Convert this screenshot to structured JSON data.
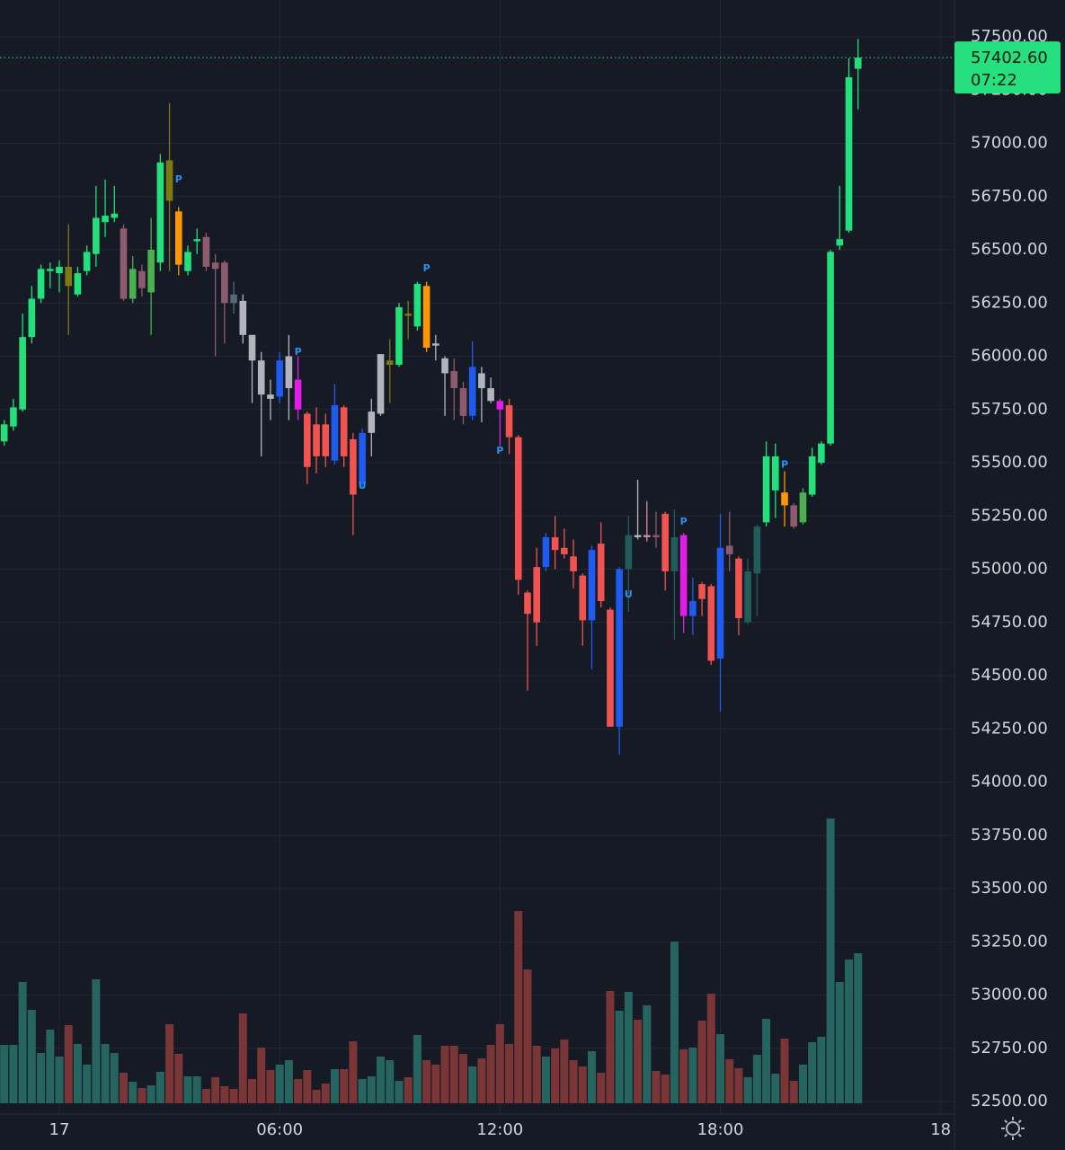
{
  "chart_data": {
    "type": "candlestick",
    "open": [
      55600,
      55670,
      55750,
      56090,
      56270,
      56400,
      56390,
      56420,
      56290,
      56400,
      56480,
      56630,
      56650,
      56600,
      56270,
      56400,
      56300,
      56440,
      56920,
      56680,
      56400,
      56540,
      56560,
      56440,
      56440,
      56290,
      56260,
      56100,
      55980,
      55820,
      55810,
      55850,
      55890,
      55730,
      55680,
      55680,
      55510,
      55760,
      55610,
      55400,
      55640,
      55730,
      55960,
      55960,
      56200,
      56140,
      56330,
      56060,
      55990,
      55930,
      55850,
      55720,
      55920,
      55850,
      55790,
      55770,
      55620,
      54890,
      55010,
      55010,
      55150,
      55100,
      55060,
      54970,
      54760,
      55120,
      54810,
      54260,
      55000,
      55160,
      55150,
      55160,
      55260,
      54990,
      55160,
      54780,
      54930,
      54920,
      54580,
      55110,
      55050,
      54750,
      54980,
      55220,
      55370,
      55360,
      55300,
      55220,
      55350,
      55500,
      55590,
      56520,
      56590,
      57350
    ],
    "high": [
      55700,
      55800,
      56200,
      56330,
      56430,
      56440,
      56450,
      56620,
      56420,
      56520,
      56800,
      56830,
      56800,
      56620,
      56470,
      56430,
      56650,
      56950,
      57190,
      56700,
      56520,
      56600,
      56580,
      56480,
      56450,
      56350,
      56290,
      56100,
      56020,
      55890,
      56020,
      56100,
      56000,
      55740,
      55760,
      55730,
      55870,
      55770,
      55640,
      55660,
      55800,
      56010,
      56080,
      56250,
      56260,
      56350,
      56350,
      56100,
      56000,
      55990,
      55880,
      56070,
      55950,
      55900,
      55800,
      55800,
      55630,
      54900,
      55100,
      55170,
      55250,
      55190,
      55140,
      54980,
      55110,
      55220,
      54820,
      55010,
      55250,
      55420,
      55320,
      55270,
      55270,
      55280,
      55170,
      54960,
      54940,
      54930,
      55260,
      55270,
      55060,
      55050,
      55210,
      55600,
      55590,
      55460,
      55310,
      55380,
      55570,
      55600,
      56500,
      56800,
      57400,
      57490
    ],
    "low": [
      55580,
      55650,
      55740,
      56060,
      56250,
      56320,
      56300,
      56100,
      56280,
      56380,
      56420,
      56560,
      56630,
      56260,
      56250,
      56280,
      56100,
      56400,
      56400,
      56380,
      56380,
      56480,
      56400,
      56000,
      56060,
      56200,
      56060,
      55780,
      55530,
      55700,
      55780,
      55700,
      55700,
      55400,
      55450,
      55480,
      55490,
      55480,
      55160,
      55380,
      55530,
      55720,
      55780,
      55950,
      56080,
      56120,
      56020,
      55980,
      55720,
      55700,
      55680,
      55700,
      55690,
      55780,
      55580,
      55540,
      54880,
      54430,
      54640,
      54990,
      55000,
      55050,
      54910,
      54640,
      54530,
      54820,
      54260,
      54130,
      54800,
      55140,
      55130,
      55100,
      54900,
      54670,
      54700,
      54690,
      54780,
      54550,
      54330,
      54990,
      54690,
      54740,
      54780,
      55200,
      55240,
      55200,
      55190,
      55210,
      55340,
      55490,
      55580,
      56500,
      56580,
      57160
    ],
    "close": [
      55680,
      55760,
      56090,
      56270,
      56410,
      56410,
      56420,
      56330,
      56390,
      56490,
      56650,
      56660,
      56670,
      56270,
      56410,
      56320,
      56500,
      56910,
      56730,
      56430,
      56490,
      56550,
      56420,
      56410,
      56250,
      56250,
      56100,
      55980,
      55820,
      55800,
      55980,
      56000,
      55750,
      55480,
      55530,
      55530,
      55770,
      55530,
      55350,
      55640,
      55740,
      56010,
      55980,
      56230,
      56190,
      56340,
      56040,
      56050,
      55920,
      55850,
      55720,
      55950,
      55850,
      55790,
      55750,
      55620,
      54950,
      54790,
      54750,
      55150,
      55090,
      55070,
      54990,
      54760,
      55090,
      54850,
      54260,
      55000,
      55160,
      55150,
      55160,
      55150,
      54990,
      55150,
      54780,
      54850,
      54860,
      54570,
      55100,
      55070,
      54770,
      54990,
      55200,
      55530,
      55530,
      55300,
      55200,
      55360,
      55530,
      55590,
      56490,
      56550,
      57310,
      57402.6
    ],
    "volume": [
      65,
      65,
      135,
      104,
      56,
      82,
      52,
      87,
      66,
      43,
      138,
      66,
      56,
      34,
      24,
      17,
      20,
      35,
      88,
      55,
      30,
      30,
      16,
      29,
      19,
      16,
      100,
      27,
      62,
      37,
      43,
      48,
      27,
      37,
      15,
      22,
      38,
      38,
      69,
      27,
      30,
      52,
      48,
      25,
      29,
      76,
      48,
      43,
      64,
      64,
      55,
      41,
      50,
      65,
      88,
      66,
      214,
      149,
      64,
      52,
      61,
      71,
      48,
      41,
      58,
      34,
      125,
      103,
      124,
      93,
      109,
      36,
      32,
      180,
      60,
      62,
      92,
      122,
      77,
      49,
      39,
      29,
      54,
      94,
      33,
      72,
      25,
      43,
      68,
      74,
      317,
      135,
      160,
      167
    ],
    "colors": [
      "#22e07a",
      "#22e07a",
      "#22e07a",
      "#22e07a",
      "#22e07a",
      "#22e07a",
      "#22e07a",
      "#7d7a12",
      "#22e07a",
      "#22e07a",
      "#22e07a",
      "#22e07a",
      "#22e07a",
      "#8e5a6e",
      "#4caf50",
      "#8e5a6e",
      "#4caf50",
      "#22e07a",
      "#7d7a12",
      "#ff9800",
      "#22e07a",
      "#22e07a",
      "#8e5a6e",
      "#8e5a6e",
      "#8e5a6e",
      "#4f6b78",
      "#b2b5be",
      "#b2b5be",
      "#b2b5be",
      "#b2b5be",
      "#1e5bf0",
      "#b2b5be",
      "#e11ee6",
      "#f05350",
      "#f05350",
      "#f05350",
      "#1e5bf0",
      "#f05350",
      "#f05350",
      "#1e5bf0",
      "#b2b5be",
      "#b2b5be",
      "#7d7a12",
      "#22e07a",
      "#7d7a12",
      "#22e07a",
      "#ff9800",
      "#b2b5be",
      "#b2b5be",
      "#8e5a6e",
      "#8e5a6e",
      "#1e5bf0",
      "#b2b5be",
      "#b2b5be",
      "#e11ee6",
      "#f05350",
      "#f05350",
      "#f05350",
      "#f05350",
      "#1e5bf0",
      "#f05350",
      "#f05350",
      "#f05350",
      "#f05350",
      "#1e5bf0",
      "#f05350",
      "#f05350",
      "#1e5bf0",
      "#1f5c5a",
      "#b2b5be",
      "#d88a9a",
      "#8e5a6e",
      "#f05350",
      "#1f5c5a",
      "#e11ee6",
      "#1e5bf0",
      "#f05350",
      "#f05350",
      "#1e5bf0",
      "#8e5a6e",
      "#f05350",
      "#1f5c5a",
      "#1f5c5a",
      "#22e07a",
      "#22e07a",
      "#ff9800",
      "#8e5a6e",
      "#4caf50",
      "#22e07a",
      "#22e07a",
      "#22e07a",
      "#22e07a",
      "#22e07a",
      "#22e07a"
    ],
    "volume_up_color": "#26645f",
    "volume_down_color": "#7a3536",
    "xlim": [
      -0.46,
      103.5
    ],
    "xticks": [
      {
        "value": 6,
        "label": "17"
      },
      {
        "value": 30,
        "label": "06:00"
      },
      {
        "value": 54,
        "label": "12:00"
      },
      {
        "value": 78,
        "label": "18:00"
      },
      {
        "value": 102,
        "label": "18"
      }
    ],
    "ylim": [
      52441,
      57673
    ],
    "yticks": [
      {
        "value": 52500,
        "label": "52500.00"
      },
      {
        "value": 52750,
        "label": "52750.00"
      },
      {
        "value": 53000,
        "label": "53000.00"
      },
      {
        "value": 53250,
        "label": "53250.00"
      },
      {
        "value": 53500,
        "label": "53500.00"
      },
      {
        "value": 53750,
        "label": "53750.00"
      },
      {
        "value": 54000,
        "label": "54000.00"
      },
      {
        "value": 54250,
        "label": "54250.00"
      },
      {
        "value": 54500,
        "label": "54500.00"
      },
      {
        "value": 54750,
        "label": "54750.00"
      },
      {
        "value": 55000,
        "label": "55000.00"
      },
      {
        "value": 55250,
        "label": "55250.00"
      },
      {
        "value": 55500,
        "label": "55500.00"
      },
      {
        "value": 55750,
        "label": "55750.00"
      },
      {
        "value": 56000,
        "label": "56000.00"
      },
      {
        "value": 56250,
        "label": "56250.00"
      },
      {
        "value": 56500,
        "label": "56500.00"
      },
      {
        "value": 56750,
        "label": "56750.00"
      },
      {
        "value": 57000,
        "label": "57000.00"
      },
      {
        "value": 57250,
        "label": "57250.00"
      },
      {
        "value": 57500,
        "label": "57500.00"
      }
    ],
    "grid": true,
    "annotations": [
      {
        "index": 19,
        "price": 56829,
        "text": "P"
      },
      {
        "index": 32,
        "price": 56020,
        "text": "P"
      },
      {
        "index": 39,
        "price": 55390,
        "text": "U"
      },
      {
        "index": 46,
        "price": 56411,
        "text": "P"
      },
      {
        "index": 54,
        "price": 55555,
        "text": "P"
      },
      {
        "index": 68,
        "price": 54880,
        "text": "U"
      },
      {
        "index": 74,
        "price": 55222,
        "text": "P"
      },
      {
        "index": 85,
        "price": 55490,
        "text": "P"
      }
    ],
    "last_price": {
      "value": 57402.6,
      "label": "57402.60"
    },
    "countdown": "07:22",
    "price_line_color": "#26e07f"
  }
}
